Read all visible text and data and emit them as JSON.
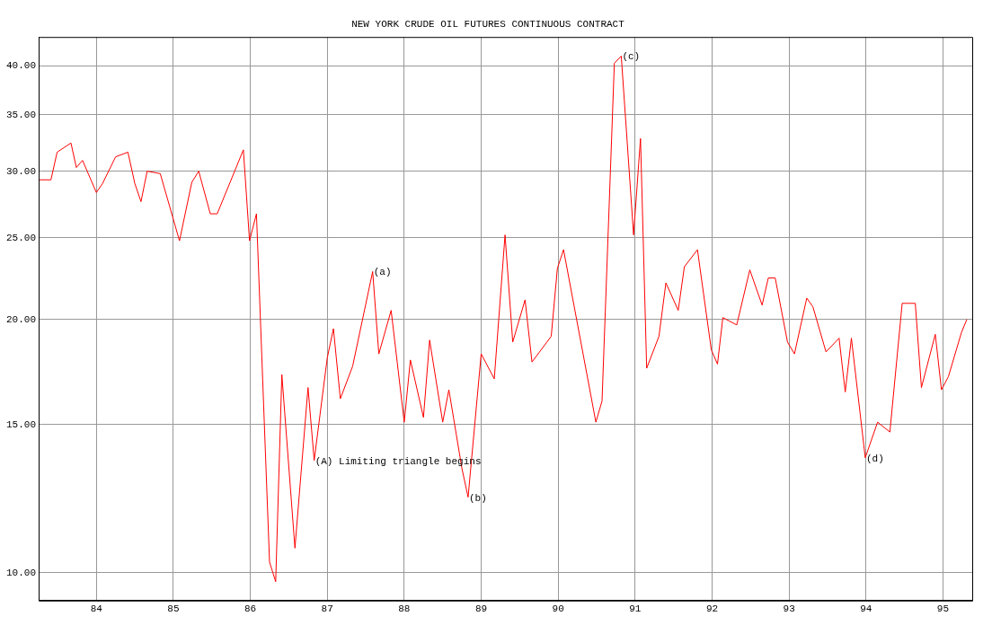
{
  "chart_data": {
    "type": "line",
    "title": "NEW YORK CRUDE OIL FUTURES CONTINUOUS CONTRACT",
    "x": [
      83.25,
      83.41,
      83.49,
      83.67,
      83.74,
      83.82,
      84.0,
      84.08,
      84.25,
      84.41,
      84.5,
      84.58,
      84.66,
      84.83,
      85.08,
      85.24,
      85.33,
      85.48,
      85.57,
      85.91,
      85.99,
      86.08,
      86.25,
      86.33,
      86.41,
      86.58,
      86.75,
      86.83,
      87.0,
      87.08,
      87.17,
      87.33,
      87.59,
      87.67,
      87.83,
      88.0,
      88.08,
      88.25,
      88.33,
      88.5,
      88.58,
      88.75,
      88.83,
      89.0,
      89.17,
      89.31,
      89.41,
      89.57,
      89.66,
      89.91,
      89.99,
      90.07,
      90.49,
      90.57,
      90.73,
      90.82,
      90.98,
      91.07,
      91.15,
      91.31,
      91.4,
      91.56,
      91.64,
      91.81,
      91.99,
      92.07,
      92.14,
      92.32,
      92.49,
      92.65,
      92.73,
      92.82,
      92.98,
      93.07,
      93.23,
      93.31,
      93.48,
      93.65,
      93.73,
      93.81,
      93.99,
      94.15,
      94.31,
      94.47,
      94.64,
      94.72,
      94.9,
      94.98,
      95.07,
      95.24,
      95.31
    ],
    "series": [
      {
        "color": "#ff0000",
        "values": [
          29.3,
          29.3,
          31.6,
          32.4,
          30.3,
          30.9,
          28.3,
          29.0,
          31.2,
          31.6,
          29.0,
          27.6,
          30.0,
          29.8,
          24.8,
          29.1,
          30.0,
          26.7,
          26.7,
          31.8,
          24.8,
          26.7,
          10.3,
          9.76,
          17.2,
          10.7,
          16.6,
          13.6,
          18.0,
          19.5,
          16.1,
          17.6,
          22.8,
          18.2,
          20.5,
          15.1,
          17.9,
          15.3,
          18.9,
          15.1,
          16.5,
          13.3,
          12.3,
          18.2,
          17.0,
          25.2,
          18.8,
          21.1,
          17.8,
          19.1,
          23.0,
          24.2,
          15.1,
          16.0,
          40.3,
          41.1,
          25.2,
          32.8,
          17.5,
          19.1,
          22.1,
          20.5,
          23.1,
          24.2,
          18.4,
          17.7,
          20.1,
          19.7,
          22.9,
          20.8,
          22.4,
          22.4,
          18.8,
          18.2,
          21.2,
          20.7,
          18.3,
          19.0,
          16.4,
          19.0,
          13.7,
          15.1,
          14.7,
          20.9,
          20.9,
          16.6,
          19.2,
          16.5,
          17.1,
          19.3,
          20.0
        ]
      }
    ],
    "xlim": [
      83.25,
      95.38
    ],
    "xticks": [
      84,
      85,
      86,
      87,
      88,
      89,
      90,
      91,
      92,
      93,
      94,
      95
    ],
    "ylim": [
      9.27,
      43.3
    ],
    "yticks": [
      {
        "value": 10,
        "label": "10.00"
      },
      {
        "value": 15,
        "label": "15.00"
      },
      {
        "value": 20,
        "label": "20.00"
      },
      {
        "value": 25,
        "label": "25.00"
      },
      {
        "value": 30,
        "label": "30.00"
      },
      {
        "value": 35,
        "label": "35.00"
      },
      {
        "value": 40,
        "label": "40.00"
      }
    ],
    "log": "y",
    "grid": true,
    "legend": false,
    "marker": "none",
    "line_style": "solid",
    "annotations": [
      {
        "text": "(a)",
        "x": 87.59,
        "y": 22.8
      },
      {
        "text": "(b)",
        "x": 88.83,
        "y": 12.3
      },
      {
        "text": "(c)",
        "x": 90.82,
        "y": 41.1
      },
      {
        "text": "(d)",
        "x": 93.99,
        "y": 13.7
      },
      {
        "text": "(A) Limiting triangle begins",
        "x": 86.83,
        "y": 13.6
      }
    ]
  }
}
